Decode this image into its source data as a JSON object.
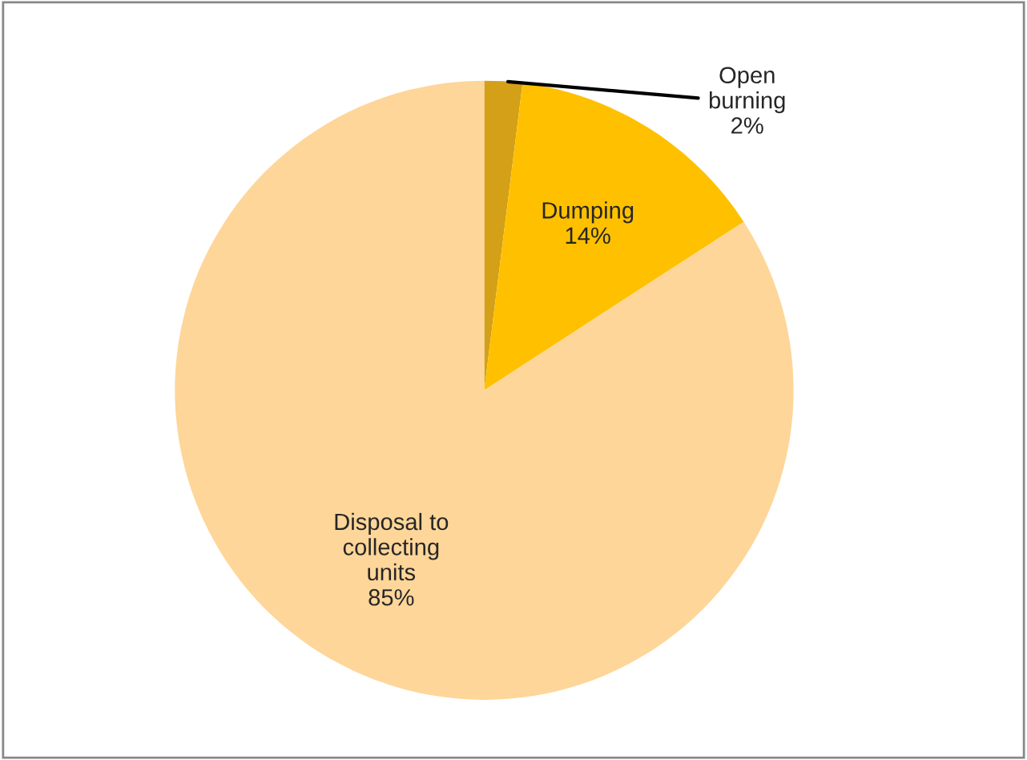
{
  "chart_data": {
    "type": "pie",
    "categories": [
      "Open burning",
      "Dumping",
      "Disposal to collecting units"
    ],
    "values": [
      2,
      14,
      85
    ],
    "value_labels": [
      "2%",
      "14%",
      "85%"
    ],
    "colors": [
      "#d4a017",
      "#ffc000",
      "#fed699"
    ],
    "legend": false
  }
}
